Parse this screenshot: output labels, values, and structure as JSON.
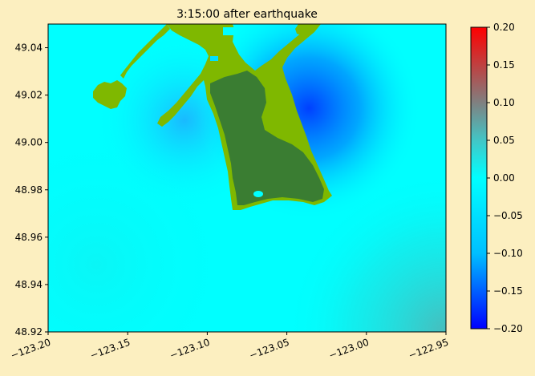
{
  "chart_data": {
    "type": "heatmap",
    "title": "3:15:00 after earthquake",
    "xlabel": "",
    "ylabel": "",
    "xlim": [
      -123.2,
      -122.95
    ],
    "ylim": [
      48.92,
      49.05
    ],
    "x_ticks": [
      "−123.20",
      "−123.15",
      "−123.10",
      "−123.05",
      "−123.00",
      "−122.95"
    ],
    "x_tick_values": [
      -123.2,
      -123.15,
      -123.1,
      -123.05,
      -123.0,
      -122.95
    ],
    "y_ticks": [
      "48.92",
      "48.94",
      "48.96",
      "48.98",
      "49.00",
      "49.02",
      "49.04"
    ],
    "y_tick_values": [
      48.92,
      48.94,
      48.96,
      48.98,
      49.0,
      49.02,
      49.04
    ],
    "colorbar": {
      "range": [
        -0.2,
        0.2
      ],
      "ticks": [
        "0.20",
        "0.15",
        "0.10",
        "0.05",
        "0.00",
        "−0.05",
        "−0.10",
        "−0.15",
        "−0.20"
      ],
      "tick_values": [
        0.2,
        0.15,
        0.1,
        0.05,
        0.0,
        -0.05,
        -0.1,
        -0.15,
        -0.2
      ],
      "colors": [
        "#0000ff",
        "#00bfff",
        "#00ffff",
        "#40c0c0",
        "#808080",
        "#ff0000"
      ]
    },
    "grid": false,
    "colors": {
      "background": "#fcefc0",
      "water": "#00ffff",
      "land_dry": "#7fb800",
      "land_wet": "#3a7d32",
      "negative_wave": "#0050ff",
      "positive_wave": "#40c4c4"
    }
  }
}
